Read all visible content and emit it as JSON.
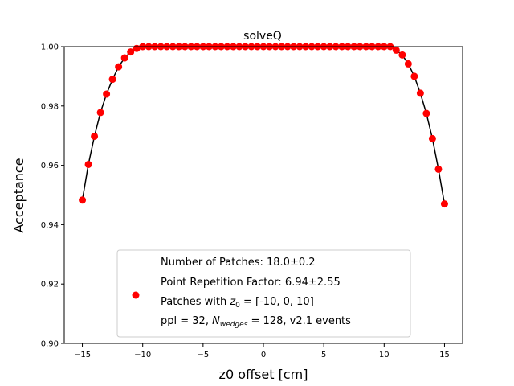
{
  "chart_data": {
    "type": "scatter",
    "title": "solveQ",
    "xlabel": "z0 offset [cm]",
    "ylabel": "Acceptance",
    "xlim": [
      -16.5,
      16.5
    ],
    "ylim": [
      0.9,
      1.0
    ],
    "xticks": [
      -15,
      -10,
      -5,
      0,
      5,
      10,
      15
    ],
    "xtick_labels": [
      "−15",
      "−10",
      "−5",
      "0",
      "5",
      "10",
      "15"
    ],
    "yticks": [
      0.9,
      0.92,
      0.94,
      0.96,
      0.98,
      1.0
    ],
    "ytick_labels": [
      "0.90",
      "0.92",
      "0.94",
      "0.96",
      "0.98",
      "1.00"
    ],
    "grid": false,
    "legend_position": "bottom-center",
    "legend_lines": [
      "Number of Patches: 18.0±0.2",
      "Point Repetition Factor: 6.94±2.55",
      "Patches with z0 = [-10, 0, 10]",
      "ppl = 32, Nwedges = 128, v2.1 events"
    ],
    "legend_rich": {
      "line3_pre": "Patches with ",
      "line3_var": "z",
      "line3_sub": "0",
      "line3_post": " = [-10, 0, 10]",
      "line4_pre": "ppl = 32, ",
      "line4_var": "N",
      "line4_sub": "wedges",
      "line4_post": " = 128, v2.1 events"
    },
    "series": [
      {
        "marker_color": "#ff0000",
        "line_color": "#000000",
        "points": [
          [
            -15.0,
            0.9483
          ],
          [
            -14.5,
            0.9603
          ],
          [
            -14.0,
            0.9698
          ],
          [
            -13.5,
            0.9778
          ],
          [
            -13.0,
            0.984
          ],
          [
            -12.5,
            0.989
          ],
          [
            -12.0,
            0.9932
          ],
          [
            -11.5,
            0.9962
          ],
          [
            -11.0,
            0.9982
          ],
          [
            -10.5,
            0.9994
          ],
          [
            -10.0,
            1.0
          ],
          [
            -9.5,
            1.0
          ],
          [
            -9.0,
            1.0
          ],
          [
            -8.5,
            1.0
          ],
          [
            -8.0,
            1.0
          ],
          [
            -7.5,
            1.0
          ],
          [
            -7.0,
            1.0
          ],
          [
            -6.5,
            1.0
          ],
          [
            -6.0,
            1.0
          ],
          [
            -5.5,
            1.0
          ],
          [
            -5.0,
            1.0
          ],
          [
            -4.5,
            1.0
          ],
          [
            -4.0,
            1.0
          ],
          [
            -3.5,
            1.0
          ],
          [
            -3.0,
            1.0
          ],
          [
            -2.5,
            1.0
          ],
          [
            -2.0,
            1.0
          ],
          [
            -1.5,
            1.0
          ],
          [
            -1.0,
            1.0
          ],
          [
            -0.5,
            1.0
          ],
          [
            0.0,
            1.0
          ],
          [
            0.5,
            1.0
          ],
          [
            1.0,
            1.0
          ],
          [
            1.5,
            1.0
          ],
          [
            2.0,
            1.0
          ],
          [
            2.5,
            1.0
          ],
          [
            3.0,
            1.0
          ],
          [
            3.5,
            1.0
          ],
          [
            4.0,
            1.0
          ],
          [
            4.5,
            1.0
          ],
          [
            5.0,
            1.0
          ],
          [
            5.5,
            1.0
          ],
          [
            6.0,
            1.0
          ],
          [
            6.5,
            1.0
          ],
          [
            7.0,
            1.0
          ],
          [
            7.5,
            1.0
          ],
          [
            8.0,
            1.0
          ],
          [
            8.5,
            1.0
          ],
          [
            9.0,
            1.0
          ],
          [
            9.5,
            1.0
          ],
          [
            10.0,
            1.0
          ],
          [
            10.5,
            1.0
          ],
          [
            11.0,
            0.9988
          ],
          [
            11.5,
            0.9972
          ],
          [
            12.0,
            0.9942
          ],
          [
            12.5,
            0.99
          ],
          [
            13.0,
            0.9843
          ],
          [
            13.5,
            0.9775
          ],
          [
            14.0,
            0.969
          ],
          [
            14.5,
            0.9587
          ],
          [
            15.0,
            0.947
          ]
        ]
      }
    ]
  }
}
